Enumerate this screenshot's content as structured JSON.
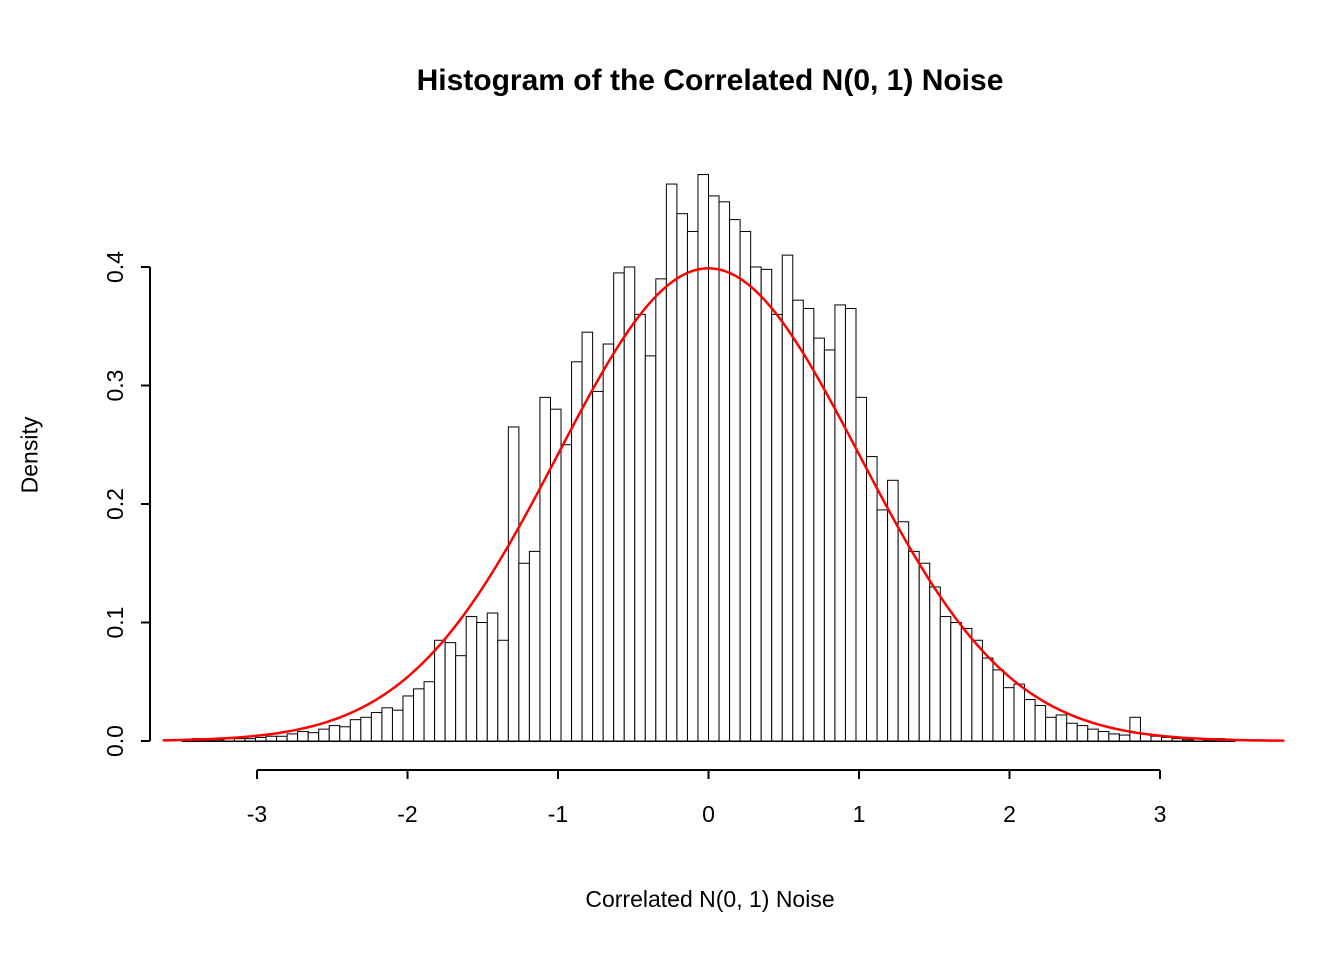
{
  "page": {
    "background": "#ffffff"
  },
  "chart_data": {
    "type": "histogram",
    "title": "Histogram of the Correlated N(0, 1) Noise",
    "xlabel": "Correlated N(0, 1) Noise",
    "ylabel": "Density",
    "x_ticks": [
      -3,
      -2,
      -1,
      0,
      1,
      2,
      3
    ],
    "y_ticks": [
      0.0,
      0.1,
      0.2,
      0.3,
      0.4
    ],
    "xlim": [
      -3.65,
      3.85
    ],
    "ylim": [
      0,
      0.48
    ],
    "grid": false,
    "bar_fill": "#ffffff",
    "bar_stroke": "#000000",
    "bin_start": -3.5,
    "bin_width": 0.07,
    "densities": [
      0.0,
      0.002,
      0.001,
      0.001,
      0.002,
      0.002,
      0.002,
      0.003,
      0.004,
      0.004,
      0.006,
      0.008,
      0.007,
      0.01,
      0.013,
      0.012,
      0.018,
      0.02,
      0.024,
      0.028,
      0.026,
      0.038,
      0.044,
      0.05,
      0.085,
      0.083,
      0.072,
      0.105,
      0.1,
      0.108,
      0.085,
      0.265,
      0.15,
      0.16,
      0.29,
      0.28,
      0.25,
      0.32,
      0.345,
      0.295,
      0.335,
      0.395,
      0.4,
      0.36,
      0.325,
      0.39,
      0.47,
      0.445,
      0.43,
      0.478,
      0.46,
      0.455,
      0.44,
      0.43,
      0.4,
      0.398,
      0.36,
      0.41,
      0.372,
      0.365,
      0.34,
      0.33,
      0.368,
      0.365,
      0.29,
      0.24,
      0.195,
      0.22,
      0.185,
      0.16,
      0.15,
      0.13,
      0.105,
      0.1,
      0.095,
      0.085,
      0.07,
      0.06,
      0.045,
      0.048,
      0.035,
      0.03,
      0.02,
      0.022,
      0.015,
      0.013,
      0.01,
      0.008,
      0.006,
      0.005,
      0.02,
      0.006,
      0.004,
      0.003,
      0.002,
      0.001,
      0.002,
      0.001,
      0.002,
      0.0
    ],
    "curve": {
      "type": "normal_pdf",
      "mean": 0,
      "sd": 1,
      "color": "#ff0000",
      "x_range": [
        -3.62,
        3.82
      ]
    }
  }
}
